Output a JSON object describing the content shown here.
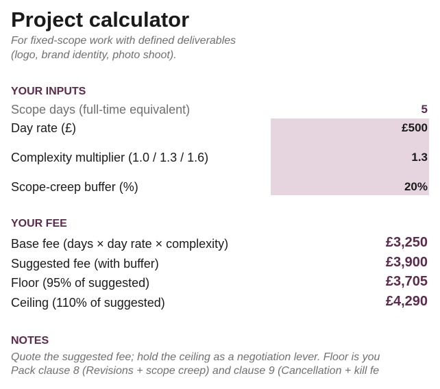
{
  "header": {
    "title": "Project calculator",
    "subtitle": [
      "For fixed-scope work with defined deliverables",
      "(logo, brand identity, photo shoot)."
    ]
  },
  "inputs": {
    "heading": "YOUR INPUTS",
    "rows": [
      {
        "label": "Scope days (full-time equivalent)",
        "value": "5"
      },
      {
        "label": "Day rate (£)",
        "value": "£500"
      },
      {
        "label": "Complexity multiplier (1.0 / 1.3 / 1.6)",
        "value": "1.3"
      },
      {
        "label": "Scope-creep buffer (%)",
        "value": "20%"
      }
    ]
  },
  "fee": {
    "heading": "YOUR FEE",
    "rows": [
      {
        "label": "Base fee (days × day rate × complexity)",
        "value": "£3,250"
      },
      {
        "label": "Suggested fee (with buffer)",
        "value": "£3,900"
      },
      {
        "label": "Floor (95% of suggested)",
        "value": "£3,705"
      },
      {
        "label": "Ceiling (110% of suggested)",
        "value": "£4,290"
      }
    ]
  },
  "notes": {
    "heading": "NOTES",
    "lines": [
      "Quote the suggested fee; hold the ceiling as a negotiation lever. Floor is you",
      "Pack clause 8 (Revisions + scope creep) and clause 9 (Cancellation + kill fe"
    ]
  }
}
